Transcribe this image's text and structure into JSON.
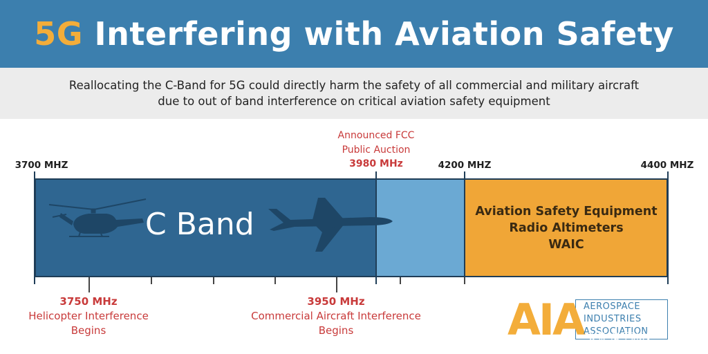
{
  "header": {
    "title_accent": "5G",
    "title_rest": "Interfering with Aviation Safety"
  },
  "subtitle": {
    "line1": "Reallocating the C-Band for 5G could directly harm the safety of all commercial and military aircraft",
    "line2": "due to out of band interference on critical aviation safety equipment"
  },
  "frequencies": {
    "start": "3700 MHZ",
    "mid": "4200 MHZ",
    "end": "4400 MHZ"
  },
  "fcc": {
    "line1": "Announced FCC",
    "line2": "Public Auction",
    "freq": "3980 MHz"
  },
  "bands": {
    "c_band": "C Band",
    "aviation_line1": "Aviation Safety Equipment",
    "aviation_line2": "Radio Altimeters",
    "aviation_line3": "WAIC"
  },
  "helicopter": {
    "freq": "3750 MHz",
    "line1": "Helicopter Interference",
    "line2": "Begins"
  },
  "commercial": {
    "freq": "3950 MHz",
    "line1": "Commercial Aircraft Interference",
    "line2": "Begins"
  },
  "logo": {
    "letters": "AIA",
    "word1": "AEROSPACE",
    "word2": "INDUSTRIES",
    "word3": "ASSOCIATION"
  },
  "watermark": "头条 @王冰汝",
  "icons": [
    "helicopter-icon",
    "airplane-icon"
  ],
  "colors": {
    "header": "#3c7fae",
    "accent": "#f3ad3a",
    "c_band": "#2f6691",
    "gap_band": "#6ba9d3",
    "aviation_band": "#f0a637",
    "red_text": "#c83a3a"
  }
}
